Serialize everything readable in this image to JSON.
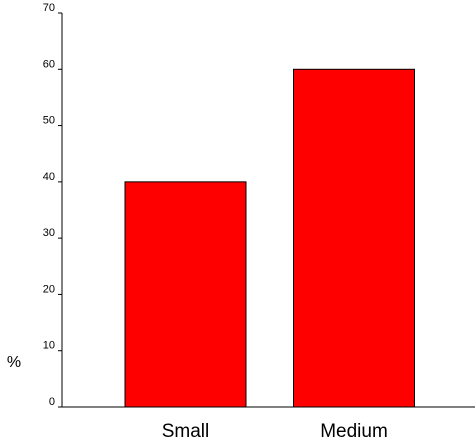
{
  "chart_data": {
    "type": "bar",
    "categories": [
      "Small",
      "Medium"
    ],
    "values": [
      40,
      60
    ],
    "ylabel": "%",
    "ylim": [
      0,
      70
    ],
    "y_ticks": [
      0,
      10,
      20,
      30,
      40,
      50,
      60,
      70
    ],
    "grid": false,
    "bar_color": "#ff0000",
    "bar_edge_color": "#000000"
  }
}
